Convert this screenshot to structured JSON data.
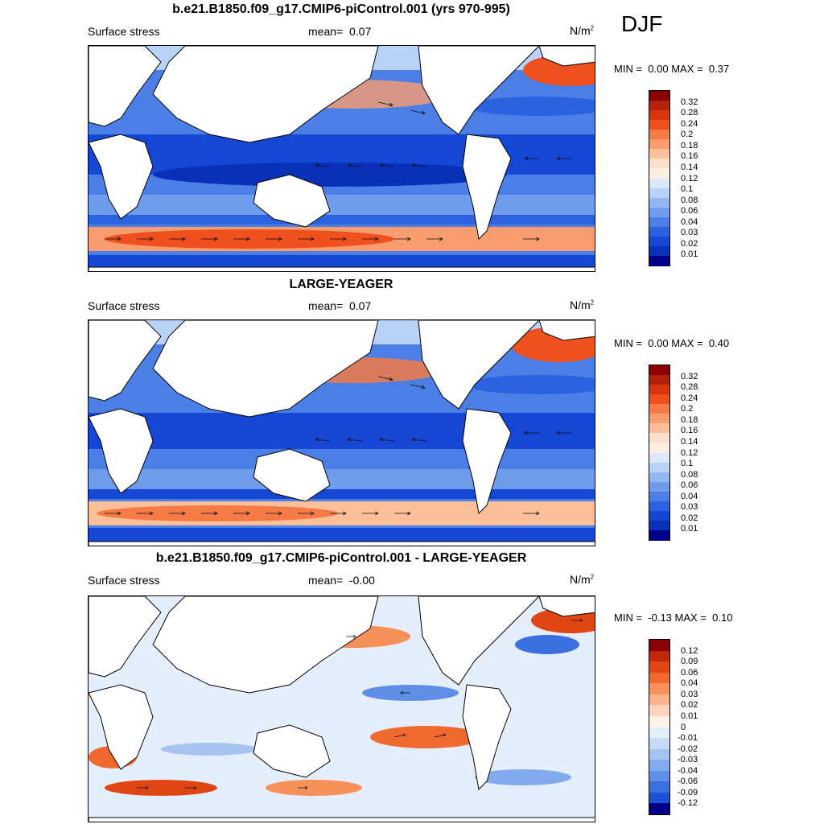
{
  "season": "DJF",
  "panels": [
    {
      "title": "b.e21.B1850.f09_g17.CMIP6-piControl.001 (yrs 970-995)",
      "variable": "Surface stress",
      "mean_label": "mean=",
      "mean_value": "0.07",
      "units_base": "N/m",
      "units_exp": "2",
      "min_label": "MIN =",
      "min_value": "0.00",
      "max_label": "MAX =",
      "max_value": "0.37",
      "colorbar_labels": [
        "0.32",
        "0.28",
        "0.24",
        "0.2",
        "0.18",
        "0.16",
        "0.14",
        "0.12",
        "0.1",
        "0.08",
        "0.06",
        "0.04",
        "0.03",
        "0.02",
        "0.01"
      ]
    },
    {
      "title": "LARGE-YEAGER",
      "variable": "Surface stress",
      "mean_label": "mean=",
      "mean_value": "0.07",
      "units_base": "N/m",
      "units_exp": "2",
      "min_label": "MIN =",
      "min_value": "0.00",
      "max_label": "MAX =",
      "max_value": "0.40",
      "colorbar_labels": [
        "0.32",
        "0.28",
        "0.24",
        "0.2",
        "0.18",
        "0.16",
        "0.14",
        "0.12",
        "0.1",
        "0.08",
        "0.06",
        "0.04",
        "0.03",
        "0.02",
        "0.01"
      ]
    },
    {
      "title": "b.e21.B1850.f09_g17.CMIP6-piControl.001 - LARGE-YEAGER",
      "variable": "Surface stress",
      "mean_label": "mean=",
      "mean_value": "-0.00",
      "units_base": "N/m",
      "units_exp": "2",
      "min_label": "MIN =",
      "min_value": "-0.13",
      "max_label": "MAX =",
      "max_value": "0.10",
      "colorbar_labels": [
        "0.12",
        "0.09",
        "0.06",
        "0.04",
        "0.03",
        "0.02",
        "0.01",
        "0",
        "-0.01",
        "-0.02",
        "-0.03",
        "-0.04",
        "-0.06",
        "-0.09",
        "-0.12"
      ]
    }
  ],
  "colors": {
    "abs_scale": [
      "#8b0000",
      "#b3200b",
      "#d9360f",
      "#f0501e",
      "#f57a45",
      "#f99d6f",
      "#fcbf9a",
      "#fde0cc",
      "#fdeee2",
      "#dce9fb",
      "#b9d2f7",
      "#94b8f1",
      "#6f9cec",
      "#4c7fe6",
      "#2a62df",
      "#1447d4",
      "#0830b8",
      "#00008b"
    ],
    "diff_scale": [
      "#8b0000",
      "#c1290c",
      "#e04614",
      "#f06a30",
      "#f8905a",
      "#fbb48e",
      "#fdd3be",
      "#fff2e8",
      "#e5effc",
      "#c7dbf8",
      "#a6c4f2",
      "#82aaec",
      "#5f8ee6",
      "#3b6fdf",
      "#1c4fd3",
      "#00008b"
    ],
    "land": "#ffffff"
  }
}
